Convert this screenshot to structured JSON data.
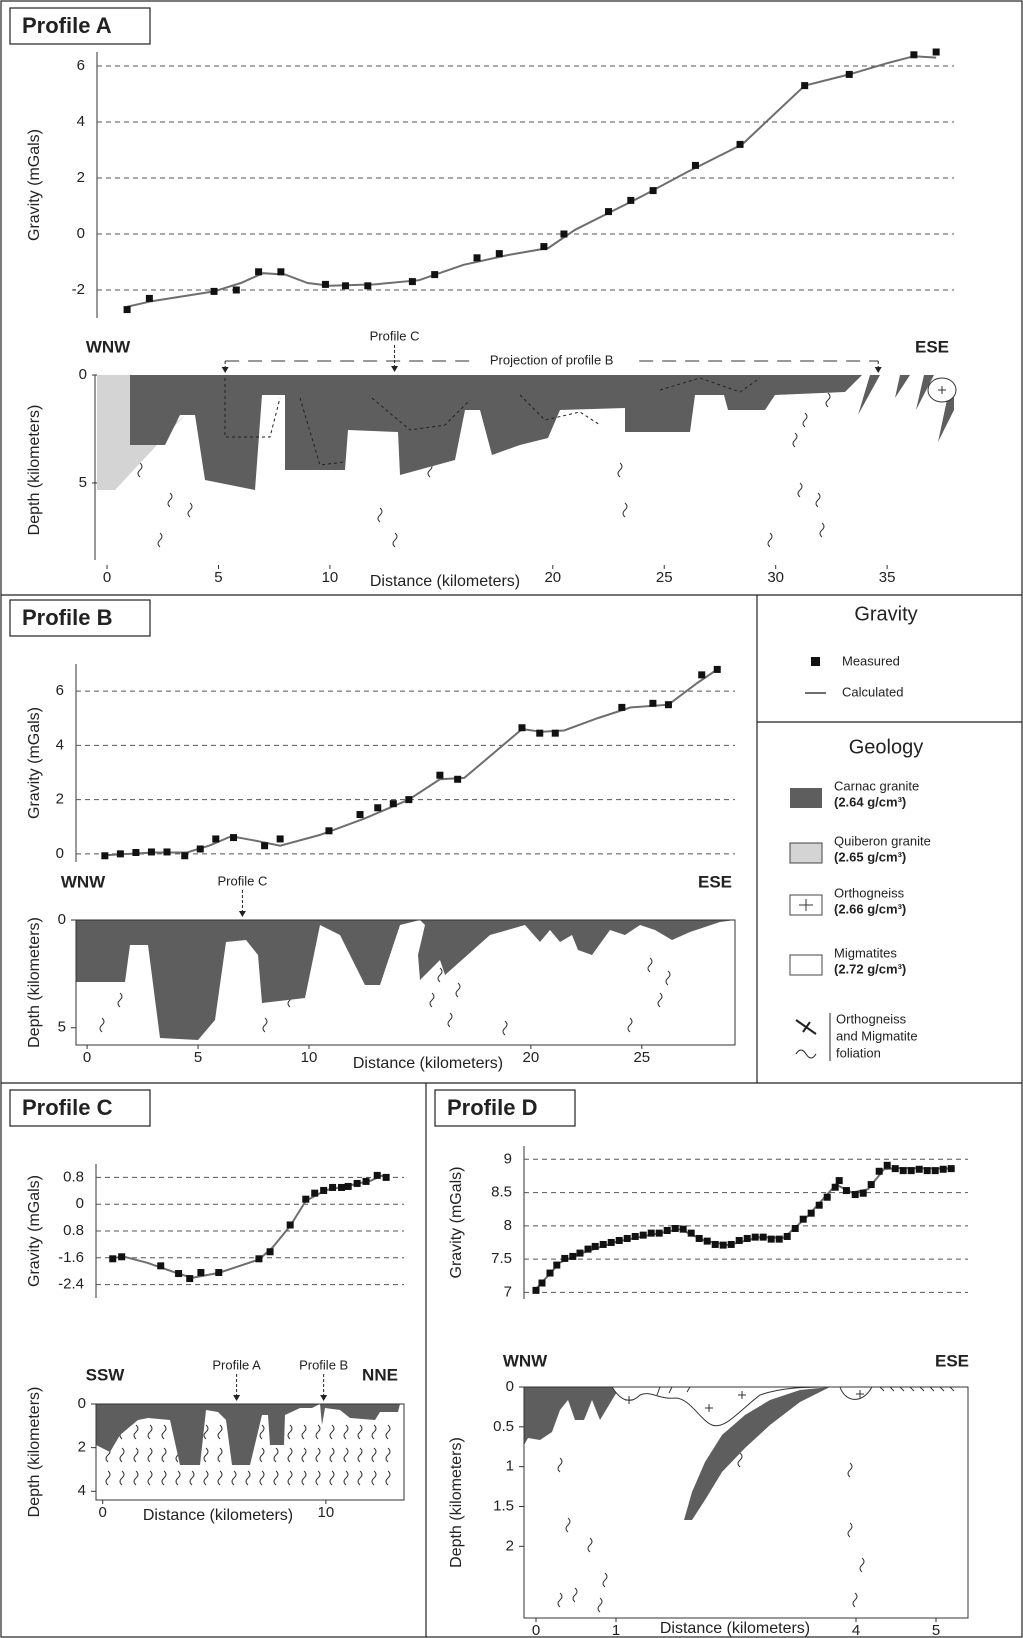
{
  "chart_data": [
    {
      "type": "line",
      "title": "Profile A",
      "ylabel": "Gravity (mGals)",
      "xlim": [
        -0.45,
        38
      ],
      "ylim": [
        -3,
        6.5
      ],
      "yticks": [
        -2,
        0,
        2,
        4,
        6
      ],
      "grid": true,
      "series": [
        {
          "name": "Measured",
          "color": "#111111",
          "marker": "square",
          "x": [
            0.9,
            1.9,
            4.8,
            5.8,
            6.8,
            7.8,
            9.8,
            10.7,
            11.7,
            13.7,
            14.7,
            16.6,
            17.6,
            19.6,
            20.5,
            22.5,
            23.5,
            24.5,
            26.4,
            28.4,
            31.3,
            33.3,
            36.2,
            37.2
          ],
          "values": [
            -2.7,
            -2.3,
            -2.05,
            -2.0,
            -1.35,
            -1.35,
            -1.8,
            -1.85,
            -1.85,
            -1.7,
            -1.45,
            -0.85,
            -0.7,
            -0.45,
            0,
            0.8,
            1.2,
            1.55,
            2.45,
            3.2,
            5.3,
            5.7,
            6.4,
            6.5
          ]
        },
        {
          "name": "Calculated",
          "color": "#6e6e6e",
          "marker": "line",
          "x": [
            0.9,
            2,
            4.8,
            6,
            7,
            8,
            9,
            10,
            12,
            14,
            16,
            18,
            19.8,
            21,
            22.5,
            24,
            26,
            28.5,
            31.3,
            33.3,
            35,
            36.2,
            37.2
          ],
          "values": [
            -2.6,
            -2.4,
            -2.05,
            -1.75,
            -1.4,
            -1.45,
            -1.75,
            -1.85,
            -1.8,
            -1.65,
            -1.1,
            -0.75,
            -0.5,
            0.15,
            0.75,
            1.35,
            2.2,
            3.2,
            5.3,
            5.7,
            6.1,
            6.35,
            6.3
          ]
        }
      ]
    },
    {
      "type": "section",
      "xlabel": "Distance (kilometers)",
      "ylabel": "Depth (kilometers)",
      "xlim": [
        -0.45,
        38
      ],
      "ylim": [
        0,
        8.8
      ],
      "xticks": [
        0,
        5,
        10,
        20,
        25,
        30,
        35
      ],
      "yticks": [
        0,
        5
      ],
      "left_label": "WNW",
      "right_label": "ESE",
      "markers": [
        {
          "label": "Profile C",
          "x": 12.9
        }
      ],
      "projection": {
        "label": "Projection of profile B",
        "span": [
          5.3,
          34.6
        ]
      }
    },
    {
      "type": "line",
      "title": "Profile B",
      "ylabel": "Gravity (mGals)",
      "xlim": [
        -0.5,
        29.2
      ],
      "ylim": [
        -0.3,
        7.0
      ],
      "yticks": [
        0,
        2,
        4,
        6
      ],
      "grid": true,
      "series": [
        {
          "color": "#111111",
          "marker": "square",
          "x": [
            0.8,
            1.5,
            2.2,
            2.9,
            3.6,
            4.4,
            5.1,
            5.8,
            6.6,
            8.0,
            8.7,
            10.9,
            12.3,
            13.1,
            13.8,
            14.5,
            15.9,
            16.7,
            19.6,
            20.4,
            21.1,
            24.1,
            25.5,
            26.2,
            27.7,
            28.4
          ],
          "values": [
            -0.07,
            0,
            0.05,
            0.07,
            0.07,
            -0.07,
            0.18,
            0.55,
            0.6,
            0.3,
            0.55,
            0.85,
            1.45,
            1.7,
            1.85,
            2.0,
            2.9,
            2.75,
            4.65,
            4.45,
            4.45,
            5.4,
            5.55,
            5.5,
            6.6,
            6.8
          ]
        },
        {
          "color": "#6e6e6e",
          "marker": "line",
          "x": [
            0.8,
            3,
            4.5,
            5.5,
            6.5,
            7.5,
            8.7,
            10.5,
            12.5,
            14.5,
            15.9,
            17,
            19.6,
            20.5,
            21.5,
            23,
            24.5,
            26.2,
            27.5,
            28.4
          ],
          "values": [
            -0.05,
            0.05,
            0.05,
            0.3,
            0.65,
            0.5,
            0.3,
            0.7,
            1.3,
            2.0,
            2.75,
            2.8,
            4.6,
            4.5,
            4.55,
            5.0,
            5.4,
            5.5,
            6.3,
            6.8
          ]
        }
      ]
    },
    {
      "type": "section",
      "xlabel": "Distance (kilometers)",
      "ylabel": "Depth (kilometers)",
      "xlim": [
        -0.5,
        29.2
      ],
      "ylim": [
        0,
        5.8
      ],
      "xticks": [
        0,
        5,
        10,
        20,
        25
      ],
      "yticks": [
        0,
        5
      ],
      "left_label": "WNW",
      "right_label": "ESE",
      "markers": [
        {
          "label": "Profile C",
          "x": 7.0
        }
      ]
    },
    {
      "type": "line",
      "title": "Profile C",
      "ylabel": "Gravity (mGals)",
      "xlim": [
        -0.3,
        13.5
      ],
      "ylim": [
        -2.8,
        1.2
      ],
      "yticks": [
        -2.4,
        -1.6,
        {
          "value": -0.8,
          "label": "0.8"
        },
        0,
        0.8
      ],
      "grid": true,
      "series": [
        {
          "color": "#111111",
          "marker": "square",
          "x": [
            0.45,
            0.85,
            2.6,
            3.4,
            3.9,
            4.4,
            5.2,
            7.0,
            7.5,
            8.4,
            9.1,
            9.5,
            9.9,
            10.3,
            10.7,
            11.0,
            11.4,
            11.8,
            12.3,
            12.7
          ],
          "values": [
            -1.63,
            -1.57,
            -1.84,
            -2.07,
            -2.22,
            -2.04,
            -2.04,
            -1.63,
            -1.42,
            -0.62,
            0.15,
            0.33,
            0.41,
            0.5,
            0.5,
            0.53,
            0.62,
            0.68,
            0.86,
            0.8
          ]
        },
        {
          "color": "#6e6e6e",
          "marker": "line",
          "x": [
            0.45,
            0.85,
            2,
            3.3,
            4,
            5.2,
            7,
            7.6,
            8.4,
            9.1,
            10,
            11,
            12,
            12.5,
            12.8
          ],
          "values": [
            -1.63,
            -1.55,
            -1.75,
            -2.05,
            -2.2,
            -2.05,
            -1.65,
            -1.3,
            -0.65,
            0.1,
            0.42,
            0.55,
            0.7,
            0.85,
            0.8
          ]
        }
      ]
    },
    {
      "type": "section",
      "xlabel": "Distance (kilometers)",
      "ylabel": "Depth (kilometers)",
      "xlim": [
        -0.3,
        13.5
      ],
      "ylim": [
        0,
        4.4
      ],
      "xticks": [
        0,
        10
      ],
      "yticks": [
        0,
        2,
        4
      ],
      "left_label": "SSW",
      "right_label": "NNE",
      "markers": [
        {
          "label": "Profile A",
          "x": 6.0
        },
        {
          "label": "Profile B",
          "x": 9.9
        }
      ]
    },
    {
      "type": "line",
      "title": "Profile D",
      "ylabel": "Gravity (mGals)",
      "xlim": [
        -0.15,
        5.4
      ],
      "ylim": [
        6.9,
        9.2
      ],
      "yticks": [
        7,
        7.5,
        8,
        8.5,
        9
      ],
      "grid": true,
      "series": [
        {
          "color": "#111111",
          "marker": "square",
          "x": [
            0,
            0.075,
            0.175,
            0.26,
            0.36,
            0.46,
            0.55,
            0.65,
            0.74,
            0.84,
            0.94,
            1.04,
            1.14,
            1.24,
            1.34,
            1.44,
            1.54,
            1.64,
            1.74,
            1.84,
            1.94,
            2.04,
            2.14,
            2.24,
            2.34,
            2.44,
            2.54,
            2.64,
            2.74,
            2.84,
            2.94,
            3.04,
            3.14,
            3.24,
            3.34,
            3.44,
            3.54,
            3.64,
            3.74,
            3.79,
            3.88,
            3.99,
            4.09,
            4.19,
            4.29,
            4.39,
            4.49,
            4.59,
            4.69,
            4.79,
            4.89,
            4.99,
            5.09,
            5.19
          ],
          "values": [
            7.03,
            7.14,
            7.29,
            7.41,
            7.51,
            7.54,
            7.59,
            7.65,
            7.69,
            7.72,
            7.75,
            7.78,
            7.81,
            7.84,
            7.86,
            7.89,
            7.89,
            7.93,
            7.96,
            7.95,
            7.89,
            7.81,
            7.77,
            7.72,
            7.71,
            7.72,
            7.78,
            7.81,
            7.83,
            7.83,
            7.8,
            7.8,
            7.84,
            7.96,
            8.1,
            8.19,
            8.31,
            8.43,
            8.58,
            8.68,
            8.53,
            8.47,
            8.49,
            8.62,
            8.82,
            8.91,
            8.86,
            8.83,
            8.83,
            8.85,
            8.83,
            8.83,
            8.85,
            8.86
          ]
        },
        {
          "color": "#6e6e6e",
          "marker": "line",
          "x": [
            0,
            0.3,
            0.6,
            1,
            1.5,
            1.8,
            2.1,
            2.4,
            2.8,
            3.1,
            3.4,
            3.75,
            3.95,
            4.15,
            4.35,
            4.55,
            5.2
          ],
          "values": [
            7.05,
            7.45,
            7.6,
            7.76,
            7.88,
            7.95,
            7.78,
            7.71,
            7.83,
            7.82,
            8.15,
            8.62,
            8.5,
            8.55,
            8.85,
            8.87,
            8.86
          ]
        }
      ]
    },
    {
      "type": "section",
      "xlabel": "Distance (kilometers)",
      "ylabel": "Depth (kilometers)",
      "xlim": [
        -0.15,
        5.4
      ],
      "ylim": [
        0,
        2.9
      ],
      "xticks": [
        0,
        1,
        4,
        5
      ],
      "yticks": [
        0,
        0.5,
        1,
        1.5,
        2
      ],
      "left_label": "WNW",
      "right_label": "ESE",
      "markers": []
    }
  ],
  "legend": {
    "gravity_title": "Gravity",
    "geology_title": "Geology",
    "units": [
      {
        "name": "Carnac granite",
        "density": "(2.64 g/cm³)",
        "color": "#5e5e5e"
      },
      {
        "name": "Quiberon granite",
        "density": "(2.65 g/cm³)",
        "color": "#d4d4d4"
      },
      {
        "name": "Orthogneiss",
        "density": "(2.66 g/cm³)",
        "color": "#ffffff"
      },
      {
        "name": "Migmatites",
        "density": "(2.72 g/cm³)",
        "color": "#ffffff"
      }
    ],
    "foliation": [
      "Orthogneiss",
      "and Migmatite",
      "foliation"
    ]
  }
}
